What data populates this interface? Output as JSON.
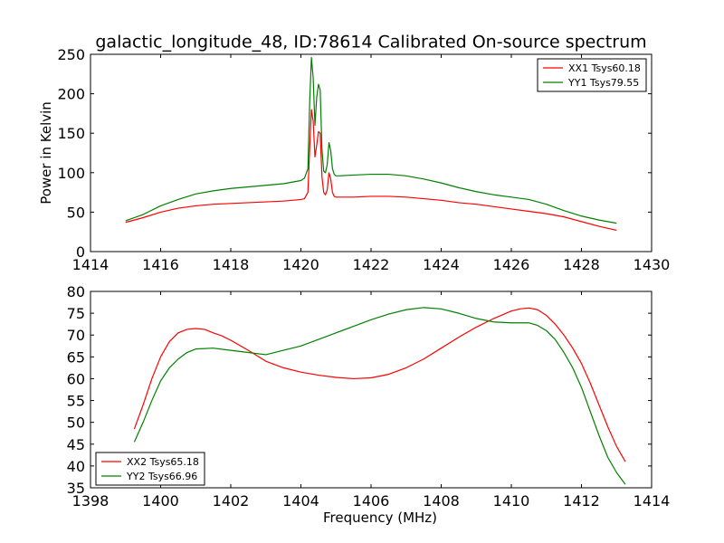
{
  "page_title": "galactic_longitude_48, ID:78614 Calibrated On-source spectrum",
  "chart_data": [
    {
      "type": "line",
      "title": "galactic_longitude_48, ID:78614 Calibrated On-source spectrum",
      "xlabel": "",
      "ylabel": "Power in Kelvin",
      "xlim": [
        1414,
        1430
      ],
      "ylim": [
        0,
        250
      ],
      "xticks": [
        1414,
        1416,
        1418,
        1420,
        1422,
        1424,
        1426,
        1428,
        1430
      ],
      "yticks": [
        0,
        50,
        100,
        150,
        200,
        250
      ],
      "grid": false,
      "legend_position": "top-right",
      "series": [
        {
          "name": "XX1 Tsys60.18",
          "color": "#ff0000",
          "x": [
            1415.0,
            1415.5,
            1416.0,
            1416.5,
            1417.0,
            1417.5,
            1418.0,
            1418.5,
            1419.0,
            1419.5,
            1420.0,
            1420.1,
            1420.2,
            1420.25,
            1420.3,
            1420.35,
            1420.4,
            1420.45,
            1420.5,
            1420.55,
            1420.6,
            1420.65,
            1420.7,
            1420.75,
            1420.8,
            1420.85,
            1420.9,
            1420.95,
            1421.0,
            1421.1,
            1421.5,
            1422.0,
            1422.5,
            1423.0,
            1423.5,
            1424.0,
            1424.5,
            1425.0,
            1425.5,
            1426.0,
            1426.5,
            1427.0,
            1427.5,
            1428.0,
            1428.5,
            1429.0
          ],
          "y": [
            37,
            43,
            50,
            55,
            58,
            60,
            61,
            62,
            63,
            64,
            66,
            67,
            75,
            130,
            180,
            165,
            120,
            135,
            152,
            150,
            95,
            75,
            72,
            78,
            100,
            92,
            75,
            70,
            69,
            69,
            69,
            70,
            70,
            69,
            67,
            65,
            62,
            60,
            57,
            54,
            51,
            48,
            44,
            38,
            32,
            27
          ]
        },
        {
          "name": "YY1 Tsys79.55",
          "color": "#008000",
          "x": [
            1415.0,
            1415.5,
            1416.0,
            1416.5,
            1417.0,
            1417.5,
            1418.0,
            1418.5,
            1419.0,
            1419.5,
            1420.0,
            1420.1,
            1420.2,
            1420.25,
            1420.3,
            1420.35,
            1420.4,
            1420.45,
            1420.5,
            1420.55,
            1420.6,
            1420.65,
            1420.7,
            1420.75,
            1420.8,
            1420.85,
            1420.9,
            1420.95,
            1421.0,
            1421.1,
            1421.5,
            1422.0,
            1422.5,
            1423.0,
            1423.5,
            1424.0,
            1424.5,
            1425.0,
            1425.5,
            1426.0,
            1426.5,
            1427.0,
            1427.5,
            1428.0,
            1428.5,
            1429.0
          ],
          "y": [
            39,
            47,
            58,
            66,
            73,
            77,
            80,
            82,
            84,
            86,
            90,
            93,
            105,
            190,
            246,
            220,
            160,
            195,
            212,
            205,
            130,
            102,
            100,
            110,
            138,
            128,
            105,
            98,
            96,
            96,
            97,
            98,
            98,
            96,
            92,
            87,
            81,
            76,
            72,
            69,
            66,
            60,
            52,
            45,
            40,
            36
          ]
        }
      ]
    },
    {
      "type": "line",
      "title": "",
      "xlabel": "Frequency (MHz)",
      "ylabel": "",
      "xlim": [
        1398,
        1414
      ],
      "ylim": [
        35,
        80
      ],
      "xticks": [
        1398,
        1400,
        1402,
        1404,
        1406,
        1408,
        1410,
        1412,
        1414
      ],
      "yticks": [
        35,
        40,
        45,
        50,
        55,
        60,
        65,
        70,
        75,
        80
      ],
      "grid": false,
      "legend_position": "bottom-left",
      "series": [
        {
          "name": "XX2 Tsys65.18",
          "color": "#ff0000",
          "x": [
            1399.25,
            1399.5,
            1399.75,
            1400.0,
            1400.25,
            1400.5,
            1400.75,
            1401.0,
            1401.25,
            1401.5,
            1401.75,
            1402.0,
            1402.5,
            1403.0,
            1403.5,
            1404.0,
            1404.5,
            1405.0,
            1405.5,
            1406.0,
            1406.5,
            1407.0,
            1407.5,
            1408.0,
            1408.5,
            1409.0,
            1409.5,
            1410.0,
            1410.25,
            1410.5,
            1410.75,
            1411.0,
            1411.25,
            1411.5,
            1411.75,
            1412.0,
            1412.25,
            1412.5,
            1412.75,
            1413.0,
            1413.25
          ],
          "y": [
            48.5,
            54,
            60,
            65,
            68.5,
            70.5,
            71.3,
            71.5,
            71.3,
            70.5,
            69.8,
            68.8,
            66.5,
            64,
            62.5,
            61.5,
            60.8,
            60.3,
            60,
            60.2,
            61,
            62.5,
            64.5,
            67,
            69.5,
            71.8,
            73.8,
            75.5,
            76,
            76.2,
            75.8,
            74.5,
            72.5,
            70,
            67,
            63.5,
            59,
            54,
            49,
            44.5,
            41
          ]
        },
        {
          "name": "YY2 Tsys66.96",
          "color": "#008000",
          "x": [
            1399.25,
            1399.5,
            1399.75,
            1400.0,
            1400.25,
            1400.5,
            1400.75,
            1401.0,
            1401.5,
            1402.0,
            1402.5,
            1403.0,
            1403.5,
            1404.0,
            1404.5,
            1405.0,
            1405.5,
            1406.0,
            1406.5,
            1407.0,
            1407.5,
            1408.0,
            1408.5,
            1409.0,
            1409.5,
            1410.0,
            1410.5,
            1410.75,
            1411.0,
            1411.25,
            1411.5,
            1411.75,
            1412.0,
            1412.25,
            1412.5,
            1412.75,
            1413.0,
            1413.25
          ],
          "y": [
            45.5,
            50,
            55,
            59.5,
            62.5,
            64.5,
            66,
            66.8,
            67,
            66.5,
            66,
            65.5,
            66.5,
            67.5,
            69,
            70.5,
            72,
            73.5,
            74.8,
            75.8,
            76.3,
            76,
            75,
            73.8,
            73,
            72.8,
            72.8,
            72.2,
            71,
            69,
            66,
            62.5,
            58,
            52.5,
            47,
            42,
            38.5,
            35.8
          ]
        }
      ]
    }
  ]
}
